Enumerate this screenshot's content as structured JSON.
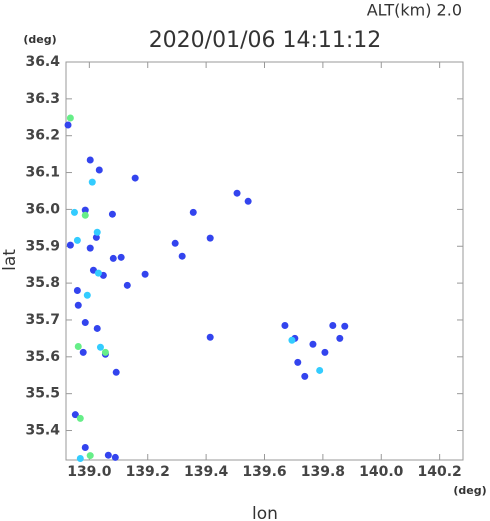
{
  "chart_data": {
    "type": "scatter",
    "title": "2020/01/06 14:11:12",
    "subtitle": "ALT(km) 2.0",
    "xlabel": "lon",
    "ylabel": "lat",
    "xunit": "(deg)",
    "yunit": "(deg)",
    "xlim": [
      138.92,
      140.28
    ],
    "ylim": [
      35.32,
      36.4
    ],
    "xticks": [
      {
        "value": 139,
        "label": "139.0"
      },
      139.2,
      139.4,
      139.6,
      139.8,
      {
        "value": 140,
        "label": "140.0"
      },
      140.2
    ],
    "yticks": [
      35.4,
      35.5,
      35.6,
      35.7,
      35.8,
      35.9,
      {
        "value": 36,
        "label": "36.0"
      },
      36.1,
      36.2,
      36.3,
      36.4
    ],
    "series": [
      {
        "color": "#3344ee",
        "x": [
          138.927,
          139.003,
          139.034,
          139.157,
          138.986,
          139.079,
          139.024,
          138.935,
          139.003,
          139.082,
          139.109,
          139.014,
          139.048,
          138.959,
          139.13,
          138.962,
          138.986,
          139.027,
          138.979,
          139.055,
          139.092,
          139.356,
          139.506,
          139.544,
          139.294,
          139.318,
          139.414,
          139.191,
          139.414,
          139.67,
          139.704,
          139.714,
          139.766,
          139.738,
          139.834,
          139.875,
          139.858,
          139.807,
          138.952,
          138.986,
          139.065,
          139.089
        ],
        "y": [
          36.229,
          36.134,
          36.107,
          36.085,
          35.998,
          35.987,
          35.924,
          35.903,
          35.895,
          35.867,
          35.87,
          35.835,
          35.821,
          35.78,
          35.794,
          35.74,
          35.693,
          35.677,
          35.612,
          35.607,
          35.558,
          35.992,
          36.044,
          36.022,
          35.908,
          35.873,
          35.922,
          35.824,
          35.653,
          35.685,
          35.65,
          35.585,
          35.634,
          35.547,
          35.685,
          35.683,
          35.65,
          35.612,
          35.443,
          35.354,
          35.333,
          35.327
        ]
      },
      {
        "color": "#33ccff",
        "x": [
          139.01,
          138.949,
          139.027,
          138.959,
          139.031,
          138.993,
          139.038,
          139.694,
          139.789,
          138.969
        ],
        "y": [
          36.074,
          35.992,
          35.938,
          35.916,
          35.827,
          35.767,
          35.626,
          35.645,
          35.563,
          35.324
        ]
      },
      {
        "color": "#66ee88",
        "x": [
          138.935,
          138.986,
          139.055,
          138.969,
          139.003,
          138.962
        ],
        "y": [
          36.248,
          35.984,
          35.612,
          35.433,
          35.332,
          35.628
        ]
      }
    ]
  }
}
